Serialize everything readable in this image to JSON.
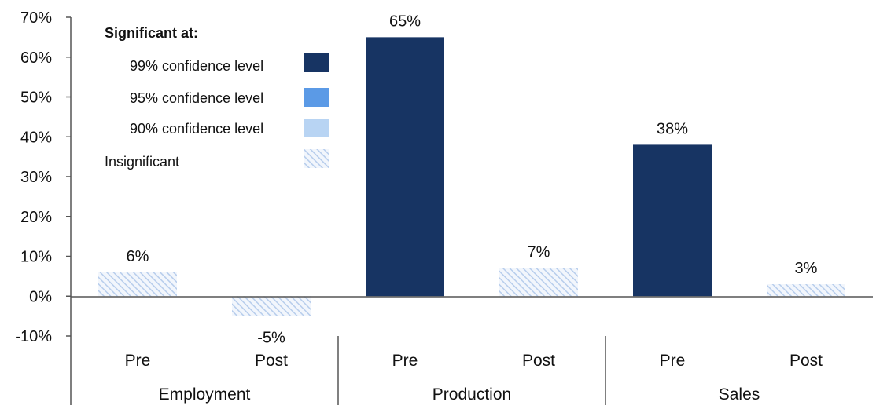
{
  "chart_data": {
    "type": "bar",
    "title": "",
    "xlabel": "",
    "ylabel": "",
    "ylim": [
      -0.1,
      0.7
    ],
    "y_ticks": [
      {
        "value": -0.1,
        "label": "-10%"
      },
      {
        "value": 0.0,
        "label": "0%"
      },
      {
        "value": 0.1,
        "label": "10%"
      },
      {
        "value": 0.2,
        "label": "20%"
      },
      {
        "value": 0.3,
        "label": "30%"
      },
      {
        "value": 0.4,
        "label": "40%"
      },
      {
        "value": 0.5,
        "label": "50%"
      },
      {
        "value": 0.6,
        "label": "60%"
      },
      {
        "value": 0.7,
        "label": "70%"
      }
    ],
    "groups": [
      "Employment",
      "Production",
      "Sales"
    ],
    "bars": [
      {
        "group": "Employment",
        "category": "Pre",
        "value": 0.06,
        "label": "6%",
        "significance": "insignificant"
      },
      {
        "group": "Employment",
        "category": "Post",
        "value": -0.05,
        "label": "-5%",
        "significance": "insignificant"
      },
      {
        "group": "Production",
        "category": "Pre",
        "value": 0.65,
        "label": "65%",
        "significance": "99"
      },
      {
        "group": "Production",
        "category": "Post",
        "value": 0.07,
        "label": "7%",
        "significance": "insignificant"
      },
      {
        "group": "Sales",
        "category": "Pre",
        "value": 0.38,
        "label": "38%",
        "significance": "99"
      },
      {
        "group": "Sales",
        "category": "Post",
        "value": 0.03,
        "label": "3%",
        "significance": "insignificant"
      }
    ],
    "legend": {
      "title": "Significant at:",
      "position": "top-left",
      "items": [
        {
          "key": "99",
          "label": "99% confidence level"
        },
        {
          "key": "95",
          "label": "95% confidence level"
        },
        {
          "key": "90",
          "label": "90% confidence level"
        },
        {
          "key": "insignificant",
          "label": "Insignificant"
        }
      ]
    },
    "colors": {
      "99": "#173463",
      "95": "#5b9ae6",
      "90": "#b8d4f3",
      "insignificant_stripe": "#b7cdec",
      "insignificant_bg": "#f2f6fc"
    },
    "grid": false
  }
}
